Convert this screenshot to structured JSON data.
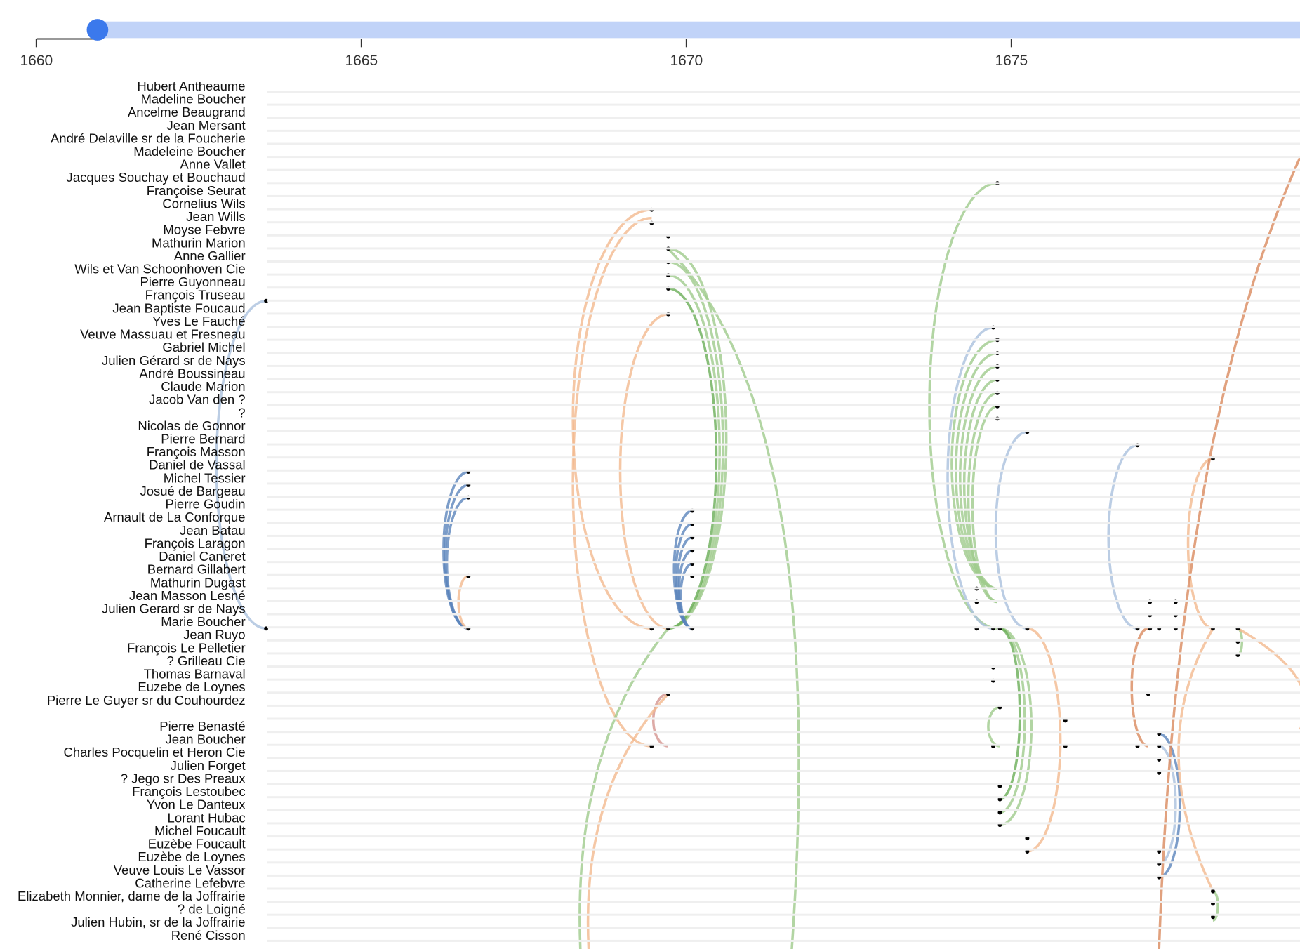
{
  "timeline": {
    "xlim": [
      1659.44,
      1679.44
    ],
    "xticks": [
      1660,
      1665,
      1670,
      1675
    ],
    "slider_value": 1660.94,
    "names": [
      "Hubert Antheaume",
      "Madeline Boucher",
      "Ancelme Beaugrand",
      "Jean Mersant",
      "André Delaville sr de la Foucherie",
      "Madeleine Boucher",
      "Anne Vallet",
      "Jacques Souchay et Bouchaud",
      "Françoise Seurat",
      "Cornelius Wils",
      "Jean Wills",
      "Moyse Febvre",
      "Mathurin Marion",
      "Anne Gallier",
      "Wils et Van Schoonhoven Cie",
      "Pierre Guyonneau",
      "François Truseau",
      "Jean Baptiste Foucaud",
      "Yves Le Fauché",
      "Veuve Massuau et Fresneau",
      "Gabriel Michel",
      "Julien Gérard sr de Nays",
      "André Boussineau",
      "Claude Marion",
      "Jacob Van den ?",
      "?",
      "Nicolas de Gonnor",
      "Pierre Bernard",
      "François Masson",
      "Daniel de Vassal",
      "Michel Tessier",
      "Josué de Bargeau",
      "Pierre Goudin",
      "Arnault de La Conforque",
      "Jean Batau",
      "François Laragon",
      "Daniel Caneret",
      "Bernard Gillabert",
      "Mathurin Dugast",
      "Jean Masson Lesné",
      "Julien Gerard sr de Nays",
      "Marie Boucher",
      "Jean Ruyo",
      "François Le Pelletier",
      "? Grilleau Cie",
      "Thomas Barnaval",
      "Euzebe de Loynes",
      "Pierre Le Guyer sr du Couhourdez",
      null,
      "Pierre Benasté",
      "Jean Boucher",
      "Charles Pocquelin et Heron Cie",
      "Julien Forget",
      "? Jego sr Des Preaux",
      "François Lestoubec",
      "Yvon Le Danteux",
      "Lorant Hubac",
      "Michel Foucault",
      "Euzèbe Foucault",
      "Euzèbe de Loynes",
      "Veuve Louis Le Vassor",
      "Catherine Lefebvre",
      "Elizabeth Monnier, dame de la Joffrairie",
      "? de Loigné",
      "Julien Hubin, sr de la Joffrairie",
      "René Cisson"
    ]
  }
}
